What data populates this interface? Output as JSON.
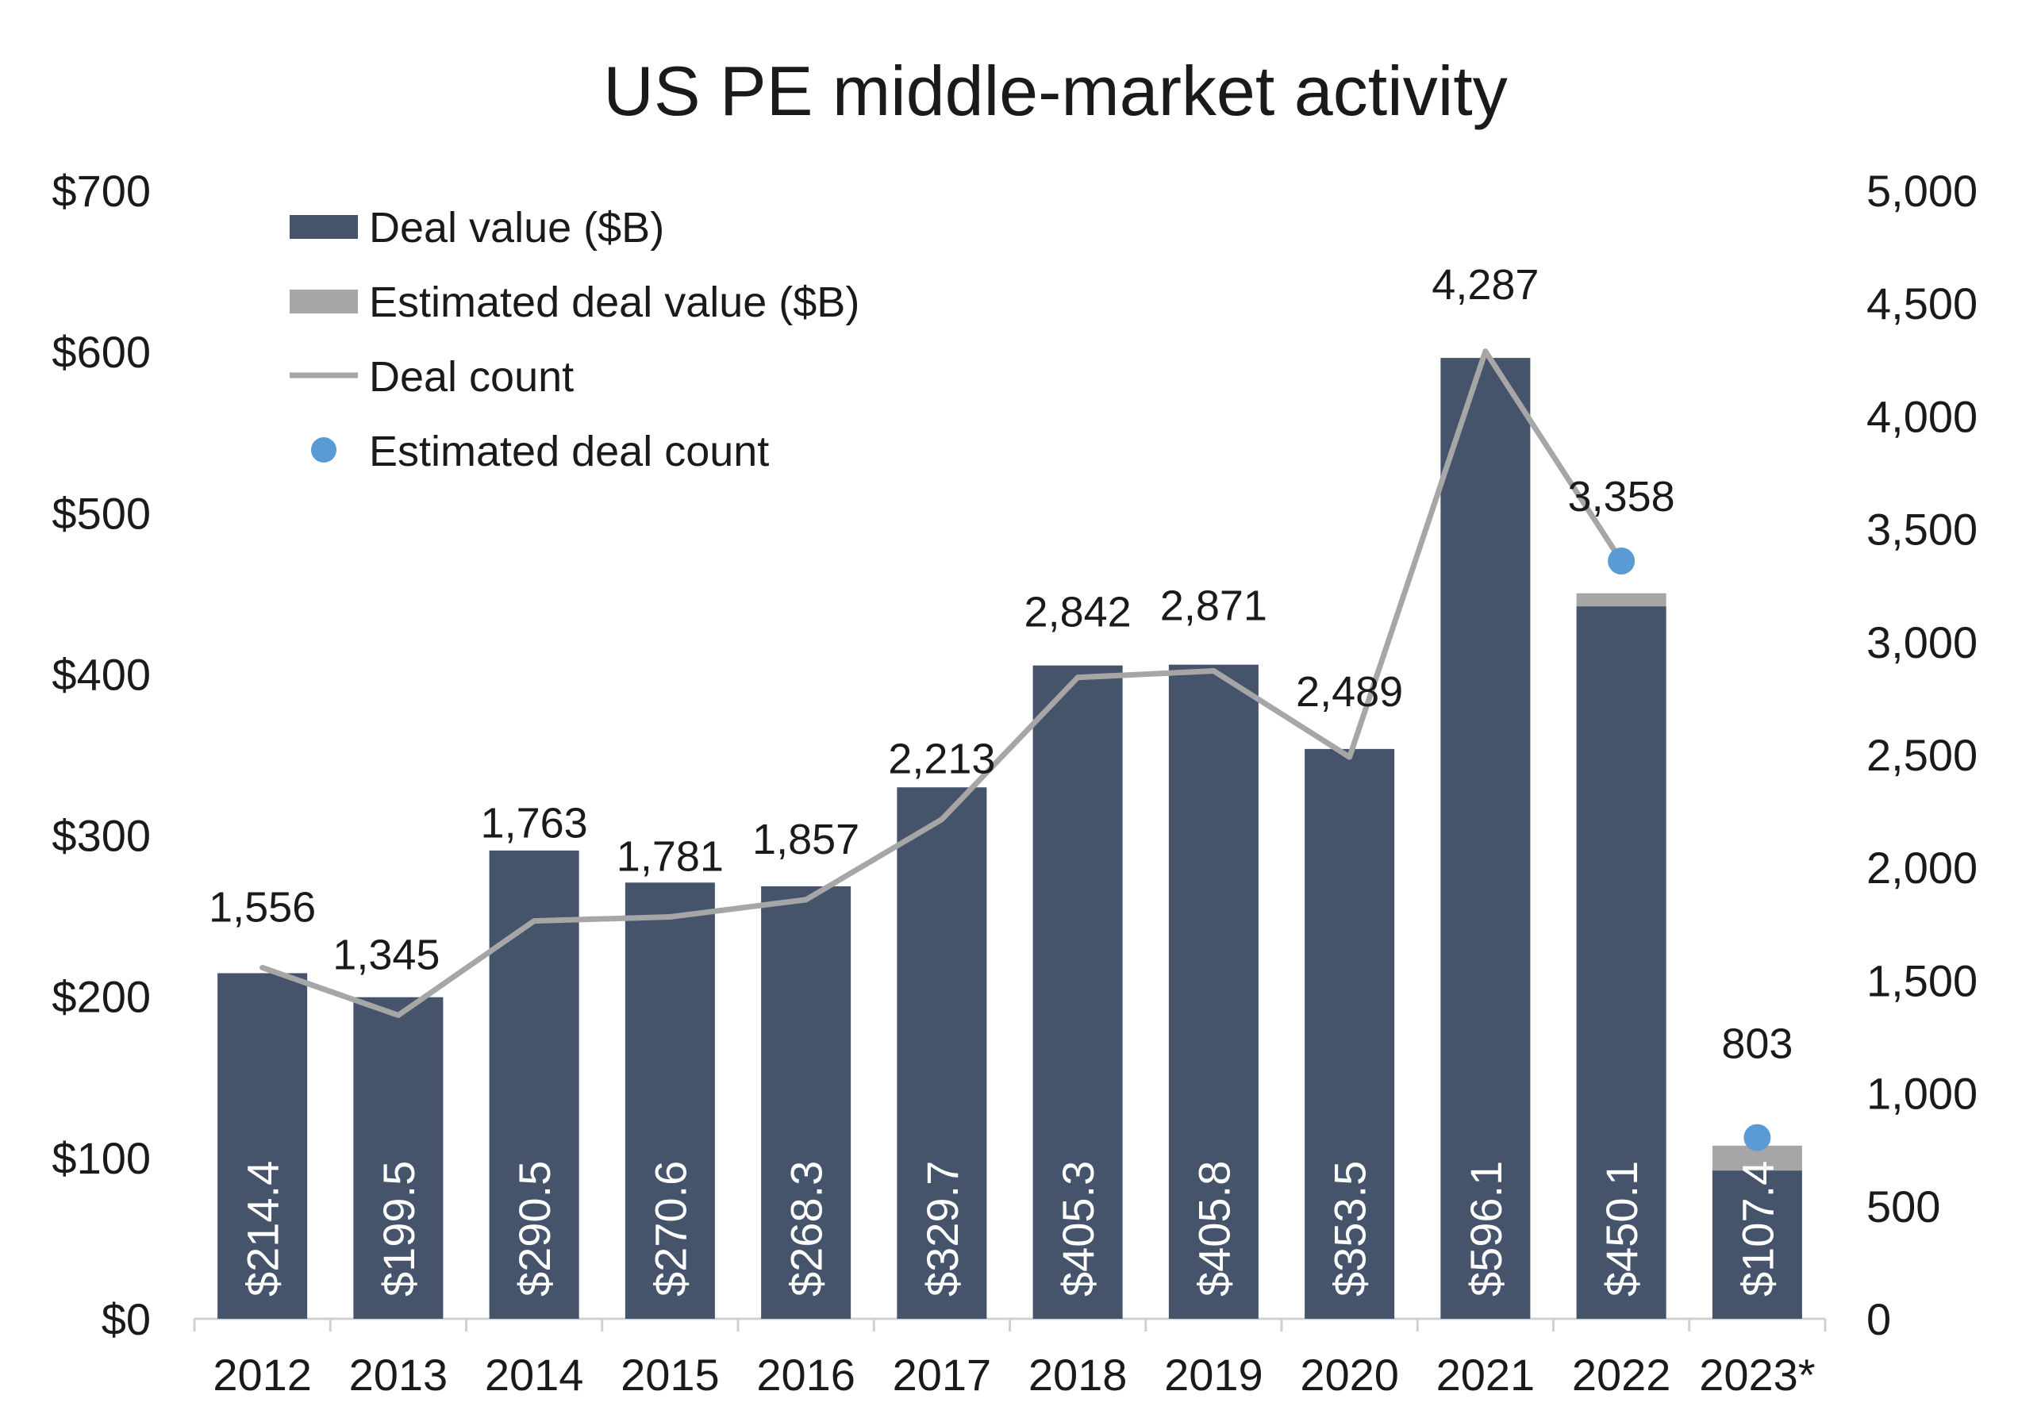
{
  "chart_data": {
    "type": "bar",
    "title": "US PE middle-market activity",
    "categories": [
      "2012",
      "2013",
      "2014",
      "2015",
      "2016",
      "2017",
      "2018",
      "2019",
      "2020",
      "2021",
      "2022",
      "2023*"
    ],
    "series": [
      {
        "name": "Deal value ($B)",
        "type": "bar",
        "axis": "left",
        "color": "#45536b",
        "values": [
          214.4,
          199.5,
          290.5,
          270.6,
          268.3,
          329.7,
          405.3,
          405.8,
          353.5,
          596.1,
          442.0,
          92.0
        ]
      },
      {
        "name": "Estimated deal value ($B)",
        "type": "bar-stacked",
        "axis": "left",
        "color": "#a6a6a6",
        "values": [
          0,
          0,
          0,
          0,
          0,
          0,
          0,
          0,
          0,
          0,
          8.1,
          15.4
        ]
      },
      {
        "name": "Deal count",
        "type": "line",
        "axis": "right",
        "color": "#a6a6a6",
        "values": [
          1556,
          1345,
          1763,
          1781,
          1857,
          2213,
          2842,
          2871,
          2489,
          4287,
          null,
          null
        ]
      },
      {
        "name": "Estimated deal count",
        "type": "scatter",
        "axis": "right",
        "color": "#5b9bd5",
        "values": [
          null,
          null,
          null,
          null,
          null,
          null,
          null,
          null,
          null,
          null,
          3358,
          803
        ]
      }
    ],
    "bar_labels": [
      "$214.4",
      "$199.5",
      "$290.5",
      "$270.6",
      "$268.3",
      "$329.7",
      "$405.3",
      "$405.8",
      "$353.5",
      "$596.1",
      "$450.1",
      "$107.4"
    ],
    "count_labels": [
      "1,556",
      "1,345",
      "1,763",
      "1,781",
      "1,857",
      "2,213",
      "2,842",
      "2,871",
      "2,489",
      "4,287",
      "3,358",
      "803"
    ],
    "count_values": [
      1556,
      1345,
      1763,
      1781,
      1857,
      2213,
      2842,
      2871,
      2489,
      4287,
      3358,
      803
    ],
    "left_axis": {
      "ylim": [
        0,
        700
      ],
      "ticks": [
        0,
        100,
        200,
        300,
        400,
        500,
        600,
        700
      ],
      "tick_labels": [
        "$0",
        "$100",
        "$200",
        "$300",
        "$400",
        "$500",
        "$600",
        "$700"
      ]
    },
    "right_axis": {
      "ylim": [
        0,
        5000
      ],
      "ticks": [
        0,
        500,
        1000,
        1500,
        2000,
        2500,
        3000,
        3500,
        4000,
        4500,
        5000
      ],
      "tick_labels": [
        "0",
        "500",
        "1,000",
        "1,500",
        "2,000",
        "2,500",
        "3,000",
        "3,500",
        "4,000",
        "4,500",
        "5,000"
      ]
    },
    "grid": false,
    "legend": {
      "position": "top-left",
      "items": [
        "Deal value ($B)",
        "Estimated deal value ($B)",
        "Deal count",
        "Estimated deal count"
      ]
    }
  },
  "colors": {
    "bar": "#45536b",
    "estimate_bar": "#a6a6a6",
    "line": "#a6a6a6",
    "estimate_dot": "#5b9bd5",
    "text": "#1a1a1a",
    "axis": "#d0d0d0",
    "bar_label": "#ffffff"
  }
}
